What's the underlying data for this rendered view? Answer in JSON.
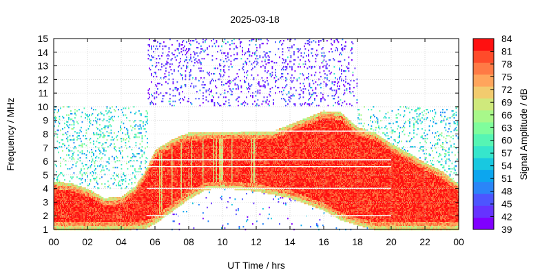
{
  "chart_data": {
    "type": "heatmap",
    "title": "2025-03-18",
    "xlabel": "UT Time / hrs",
    "ylabel": "Frequency / MHz",
    "xlim": [
      0,
      24
    ],
    "ylim": [
      1,
      15
    ],
    "x_ticks": [
      "00",
      "02",
      "04",
      "06",
      "08",
      "10",
      "12",
      "14",
      "16",
      "18",
      "20",
      "22",
      "00"
    ],
    "y_ticks": [
      "1",
      "2",
      "3",
      "4",
      "5",
      "6",
      "7",
      "8",
      "9",
      "10",
      "11",
      "12",
      "13",
      "14",
      "15"
    ],
    "grid": true,
    "colorbar": {
      "label": "Signal Amplitude / dB",
      "min": 39,
      "max": 84,
      "ticks": [
        "39",
        "42",
        "45",
        "48",
        "51",
        "54",
        "57",
        "60",
        "63",
        "66",
        "69",
        "72",
        "75",
        "78",
        "81",
        "84"
      ],
      "colors": [
        "#8000ff",
        "#6633ff",
        "#4d55ff",
        "#2a85f8",
        "#0ca6ef",
        "#18c8e0",
        "#36e6cc",
        "#56f5b4",
        "#7ffd9c",
        "#a8f88a",
        "#cfe97c",
        "#f2cb6e",
        "#ffa55c",
        "#ff7a45",
        "#ff4b2a",
        "#ff1010"
      ]
    },
    "regions": {
      "strong_signal_upper_envelope_mhz": [
        [
          0,
          4.5
        ],
        [
          1,
          4.4
        ],
        [
          2,
          4.0
        ],
        [
          3,
          3.3
        ],
        [
          4,
          3.4
        ],
        [
          4.8,
          4.1
        ],
        [
          5.4,
          5.2
        ],
        [
          6,
          6.8
        ],
        [
          7,
          7.6
        ],
        [
          8,
          8.1
        ],
        [
          12,
          8.2
        ],
        [
          13,
          8.2
        ],
        [
          14,
          8.7
        ],
        [
          15,
          9.2
        ],
        [
          16,
          9.7
        ],
        [
          17,
          9.6
        ],
        [
          18,
          8.5
        ],
        [
          19,
          8.1
        ],
        [
          20,
          7.3
        ],
        [
          21,
          6.6
        ],
        [
          22,
          5.9
        ],
        [
          23,
          5.3
        ],
        [
          24,
          4.3
        ]
      ],
      "strong_signal_lower_envelope_mhz": [
        [
          0,
          1.0
        ],
        [
          4.6,
          1.0
        ],
        [
          5.5,
          1.1
        ],
        [
          6,
          1.4
        ],
        [
          7,
          2.3
        ],
        [
          8,
          3.2
        ],
        [
          9,
          3.9
        ],
        [
          10,
          4.0
        ],
        [
          12,
          3.8
        ],
        [
          14,
          3.3
        ],
        [
          16,
          2.4
        ],
        [
          17,
          1.7
        ],
        [
          18,
          1.3
        ],
        [
          19,
          1.0
        ],
        [
          24,
          1.0
        ]
      ],
      "high_frequency_noise_band": {
        "start_hr": 5.6,
        "end_hr": 18.0,
        "freq_mhz": [
          10,
          15
        ]
      },
      "low_frequency_noise_band": {
        "freq_mhz": [
          4,
          10
        ],
        "periods_hr": [
          [
            0,
            5.6
          ],
          [
            18,
            24
          ]
        ]
      },
      "horizontal_gap_lines_mhz": [
        2.0,
        4.0,
        5.6,
        6.1,
        8.2
      ]
    }
  }
}
